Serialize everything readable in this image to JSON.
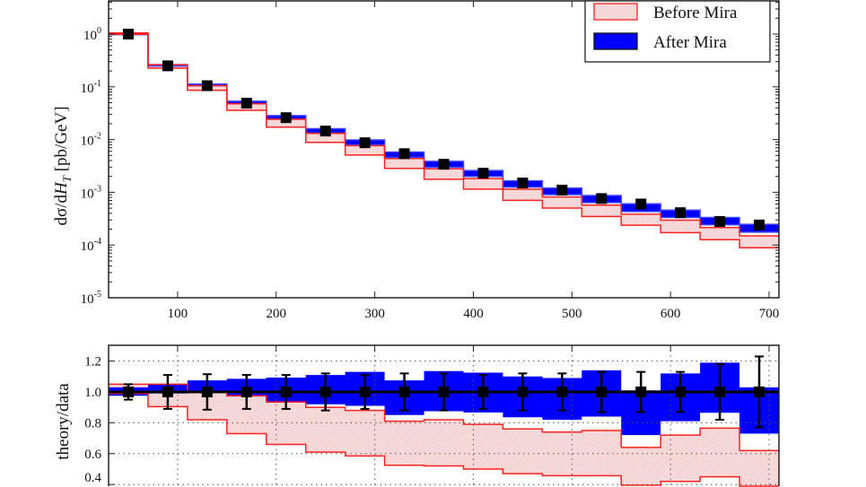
{
  "chart_data": [
    {
      "type": "line",
      "xlabel": "",
      "ylabel": "dσ/dH_T [pb/GeV]",
      "ylabel_parts": {
        "prefix": "dσ/d",
        "var": "H",
        "sub": "T",
        "suffix": " [pb/GeV]"
      },
      "yscale": "log",
      "ylim": [
        1e-05,
        5
      ],
      "xlim": [
        30,
        710
      ],
      "grid": false,
      "xticks": [
        100,
        200,
        300,
        400,
        500,
        600,
        700
      ],
      "yticks": [
        {
          "exp": "0",
          "v": 1
        },
        {
          "exp": "-1",
          "v": 0.1
        },
        {
          "exp": "-2",
          "v": 0.01
        },
        {
          "exp": "-3",
          "v": 0.001
        },
        {
          "exp": "-4",
          "v": 0.0001
        },
        {
          "exp": "-5",
          "v": 1e-05
        }
      ],
      "legend_position": "top-right",
      "legend": [
        {
          "name": "Before Mira",
          "fill": "#ffd8d8",
          "edge": "#ff2020"
        },
        {
          "name": "After Mira",
          "fill": "#0000ff",
          "edge": "#111111"
        }
      ],
      "bin_edges": [
        30,
        70,
        110,
        150,
        190,
        230,
        270,
        310,
        350,
        390,
        430,
        470,
        510,
        550,
        590,
        630,
        670,
        710
      ],
      "data_points": {
        "x": [
          50,
          90,
          130,
          170,
          210,
          250,
          290,
          330,
          370,
          410,
          450,
          490,
          530,
          570,
          610,
          650,
          690
        ],
        "y": [
          1.0,
          0.25,
          0.105,
          0.049,
          0.026,
          0.0145,
          0.0087,
          0.0054,
          0.0034,
          0.0023,
          0.0015,
          0.0011,
          0.00076,
          0.0006,
          0.00041,
          0.00028,
          0.00024
        ]
      }
    },
    {
      "type": "area",
      "ylabel": "theory/data",
      "ylim": [
        0.2,
        1.3
      ],
      "xlim": [
        30,
        710
      ],
      "grid": true,
      "yticks": [
        "0.4",
        "0.6",
        "0.8",
        "1.0",
        "1.2"
      ],
      "series": [
        {
          "name": "Before Mira",
          "low": [
            0.99,
            0.905,
            0.82,
            0.73,
            0.66,
            0.61,
            0.585,
            0.525,
            0.52,
            0.5,
            0.47,
            0.457,
            0.457,
            0.395,
            0.42,
            0.45,
            0.37
          ],
          "high": [
            1.05,
            1.05,
            1.0,
            0.975,
            0.935,
            0.9,
            0.88,
            0.81,
            0.82,
            0.79,
            0.76,
            0.74,
            0.75,
            0.64,
            0.72,
            0.765,
            0.62
          ]
        },
        {
          "name": "After Mira",
          "low": [
            0.975,
            0.99,
            0.995,
            0.97,
            0.93,
            0.92,
            0.91,
            0.85,
            0.875,
            0.867,
            0.836,
            0.82,
            0.84,
            0.72,
            0.81,
            0.865,
            0.73
          ],
          "high": [
            1.03,
            1.05,
            1.075,
            1.085,
            1.093,
            1.11,
            1.13,
            1.075,
            1.135,
            1.125,
            1.1,
            1.09,
            1.14,
            1.01,
            1.12,
            1.19,
            1.03
          ]
        }
      ],
      "data_ratio": {
        "y": [
          1,
          1,
          1,
          1,
          1,
          1,
          1,
          1,
          1,
          1,
          1,
          1,
          1,
          1,
          1,
          1,
          1
        ],
        "yerr": [
          0.05,
          0.11,
          0.115,
          0.11,
          0.11,
          0.12,
          0.11,
          0.12,
          0.12,
          0.11,
          0.12,
          0.12,
          0.13,
          0.13,
          0.13,
          0.18,
          0.23
        ]
      }
    }
  ]
}
